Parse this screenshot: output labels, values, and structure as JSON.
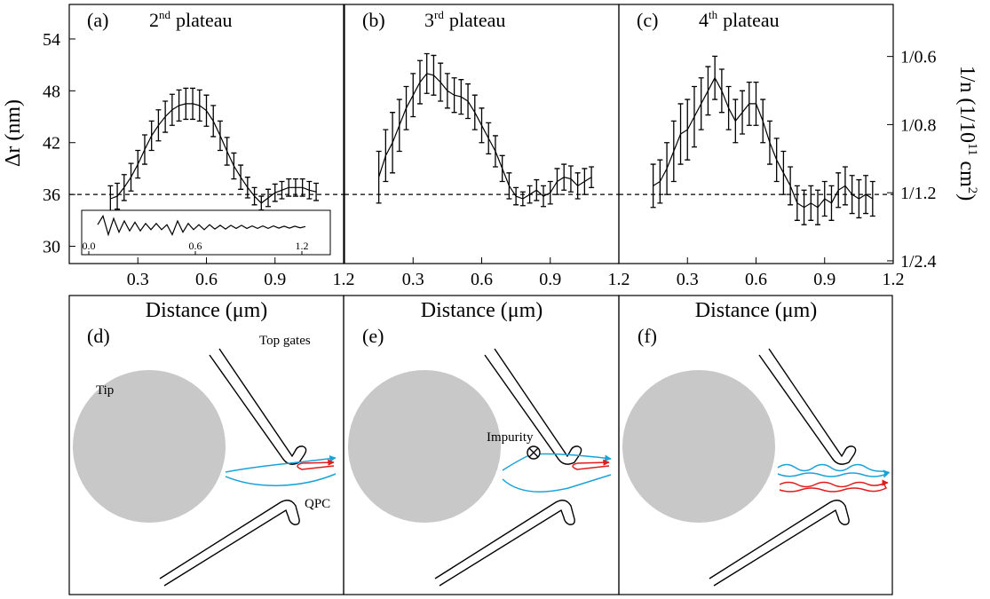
{
  "chart_data": [
    {
      "type": "line",
      "label": "(a)",
      "title": {
        "number": "2",
        "suffix": "nd",
        "text": "plateau"
      },
      "ylabel": "Δr  (nm)",
      "xlabel": "Distance  (μm)",
      "color": "#000000",
      "xlim": [
        0,
        1.2
      ],
      "ylim": [
        28,
        58
      ],
      "xticks": [
        0.3,
        0.6,
        0.9,
        1.2
      ],
      "yticks": [
        30,
        36,
        42,
        48,
        54
      ],
      "reference_line": 36,
      "x": [
        0.18,
        0.21,
        0.24,
        0.27,
        0.3,
        0.33,
        0.36,
        0.39,
        0.42,
        0.45,
        0.48,
        0.51,
        0.54,
        0.57,
        0.6,
        0.63,
        0.66,
        0.69,
        0.72,
        0.75,
        0.78,
        0.81,
        0.84,
        0.87,
        0.9,
        0.93,
        0.96,
        0.99,
        1.02,
        1.05,
        1.08
      ],
      "values": [
        35.5,
        35.8,
        36.8,
        38.0,
        39.5,
        41.2,
        42.8,
        44.0,
        45.0,
        45.8,
        46.3,
        46.5,
        46.5,
        46.3,
        45.7,
        44.5,
        42.8,
        41.0,
        39.3,
        38.0,
        36.8,
        35.8,
        35.0,
        35.6,
        36.2,
        36.5,
        36.8,
        36.8,
        36.8,
        36.5,
        36.3
      ],
      "errors": [
        1.5,
        1.5,
        1.5,
        1.6,
        1.6,
        1.7,
        1.7,
        1.8,
        1.8,
        1.8,
        1.8,
        1.8,
        1.8,
        1.8,
        1.8,
        1.8,
        1.7,
        1.6,
        1.5,
        1.4,
        1.2,
        1.0,
        0.8,
        1.0,
        1.0,
        1.0,
        1.0,
        1.0,
        1.0,
        1.0,
        1.0
      ],
      "inset": {
        "xlim": [
          -0.04,
          1.36
        ],
        "ylim": [
          -1,
          1
        ],
        "xticks": [
          {
            "value": 0,
            "label": "0.0"
          },
          0.6,
          1.2
        ],
        "x": [
          0.05,
          0.08,
          0.11,
          0.14,
          0.17,
          0.2,
          0.23,
          0.26,
          0.29,
          0.32,
          0.35,
          0.38,
          0.41,
          0.44,
          0.47,
          0.5,
          0.53,
          0.56,
          0.59,
          0.62,
          0.65,
          0.68,
          0.71,
          0.74,
          0.77,
          0.8,
          0.83,
          0.86,
          0.89,
          0.92,
          0.95,
          0.98,
          1.01,
          1.04,
          1.07,
          1.1,
          1.13,
          1.16,
          1.19,
          1.22
        ],
        "values": [
          0.2,
          0.9,
          -0.6,
          0.7,
          -0.4,
          0.5,
          -0.3,
          0.4,
          -0.3,
          0.3,
          -0.2,
          0.3,
          -0.2,
          0.2,
          -0.6,
          0.5,
          -0.4,
          0.3,
          -0.2,
          0.2,
          -0.2,
          0.2,
          -0.15,
          0.15,
          -0.15,
          0.15,
          -0.1,
          0.15,
          -0.1,
          0.1,
          -0.1,
          0.1,
          -0.1,
          0.1,
          -0.08,
          0.08,
          -0.08,
          0.08,
          -0.05,
          0.05
        ]
      }
    },
    {
      "type": "line",
      "label": "(b)",
      "title": {
        "number": "3",
        "suffix": "rd",
        "text": "plateau"
      },
      "xlabel": "Distance  (μm)",
      "color": "#000000",
      "xlim": [
        0,
        1.2
      ],
      "ylim": [
        28,
        58
      ],
      "xticks": [
        0.3,
        0.6,
        0.9,
        1.2
      ],
      "reference_line": 36,
      "x": [
        0.15,
        0.18,
        0.21,
        0.24,
        0.27,
        0.3,
        0.33,
        0.36,
        0.39,
        0.42,
        0.45,
        0.48,
        0.51,
        0.54,
        0.57,
        0.6,
        0.63,
        0.66,
        0.69,
        0.72,
        0.75,
        0.78,
        0.81,
        0.84,
        0.87,
        0.9,
        0.93,
        0.96,
        0.99,
        1.02,
        1.05,
        1.08
      ],
      "values": [
        38.0,
        40.5,
        42.0,
        44.0,
        46.0,
        47.5,
        49.0,
        50.0,
        49.8,
        49.0,
        48.0,
        47.5,
        47.3,
        46.8,
        45.5,
        44.0,
        42.5,
        41.0,
        39.0,
        37.0,
        35.8,
        35.5,
        36.0,
        36.5,
        35.8,
        36.2,
        37.5,
        38.0,
        37.8,
        37.0,
        37.5,
        38.0
      ],
      "errors": [
        3.0,
        3.0,
        3.5,
        3.0,
        2.5,
        2.5,
        2.5,
        2.3,
        2.3,
        2.2,
        2.0,
        2.0,
        2.0,
        2.0,
        2.0,
        2.0,
        1.8,
        1.8,
        1.5,
        1.5,
        1.0,
        0.8,
        1.0,
        1.2,
        1.2,
        1.3,
        1.5,
        1.5,
        1.5,
        1.5,
        1.5,
        1.2
      ]
    },
    {
      "type": "line",
      "label": "(c)",
      "title": {
        "number": "4",
        "suffix": "th",
        "text": "plateau"
      },
      "xlabel": "Distance  (μm)",
      "color": "#000000",
      "xlim": [
        0,
        1.2
      ],
      "ylim": [
        28,
        58
      ],
      "xticks": [
        0.3,
        0.6,
        0.9,
        1.2
      ],
      "y2label": [
        "1/n  (1/10",
        "11",
        " cm",
        "2",
        ")"
      ],
      "y2lim": [
        0.4,
        1.985
      ],
      "y2ticks": [
        {
          "value": 1.6667,
          "label": "1/0.6"
        },
        {
          "value": 1.25,
          "label": "1/0.8"
        },
        {
          "value": 0.8333,
          "label": "1/1.2"
        },
        {
          "value": 0.4167,
          "label": "1/2.4"
        }
      ],
      "reference_line": 36,
      "x": [
        0.15,
        0.18,
        0.21,
        0.24,
        0.27,
        0.3,
        0.33,
        0.36,
        0.39,
        0.42,
        0.45,
        0.48,
        0.51,
        0.54,
        0.57,
        0.6,
        0.63,
        0.66,
        0.69,
        0.72,
        0.75,
        0.78,
        0.81,
        0.84,
        0.87,
        0.9,
        0.93,
        0.96,
        0.99,
        1.02,
        1.05,
        1.08,
        1.11
      ],
      "values": [
        37.0,
        37.5,
        39.0,
        41.0,
        43.0,
        43.5,
        45.0,
        46.5,
        48.0,
        49.5,
        48.0,
        46.0,
        44.5,
        45.5,
        46.5,
        46.5,
        44.5,
        42.0,
        40.0,
        38.5,
        37.0,
        35.0,
        34.5,
        35.0,
        34.5,
        35.5,
        35.0,
        36.5,
        37.0,
        36.0,
        35.5,
        36.0,
        35.5
      ],
      "errors": [
        2.5,
        2.5,
        3.0,
        3.5,
        3.5,
        3.5,
        3.5,
        3.0,
        2.8,
        2.5,
        2.5,
        2.5,
        2.5,
        2.5,
        2.5,
        2.5,
        2.5,
        2.5,
        2.5,
        2.5,
        2.2,
        2.0,
        2.0,
        2.0,
        2.0,
        2.0,
        2.0,
        2.0,
        2.2,
        2.2,
        2.2,
        2.2,
        2.0
      ]
    }
  ],
  "diagrams": [
    {
      "label": "(d)",
      "tip": "Tip",
      "gates": "Top gates",
      "qpc": "QPC"
    },
    {
      "label": "(e)",
      "impurity": "Impurity"
    },
    {
      "label": "(f)"
    }
  ]
}
